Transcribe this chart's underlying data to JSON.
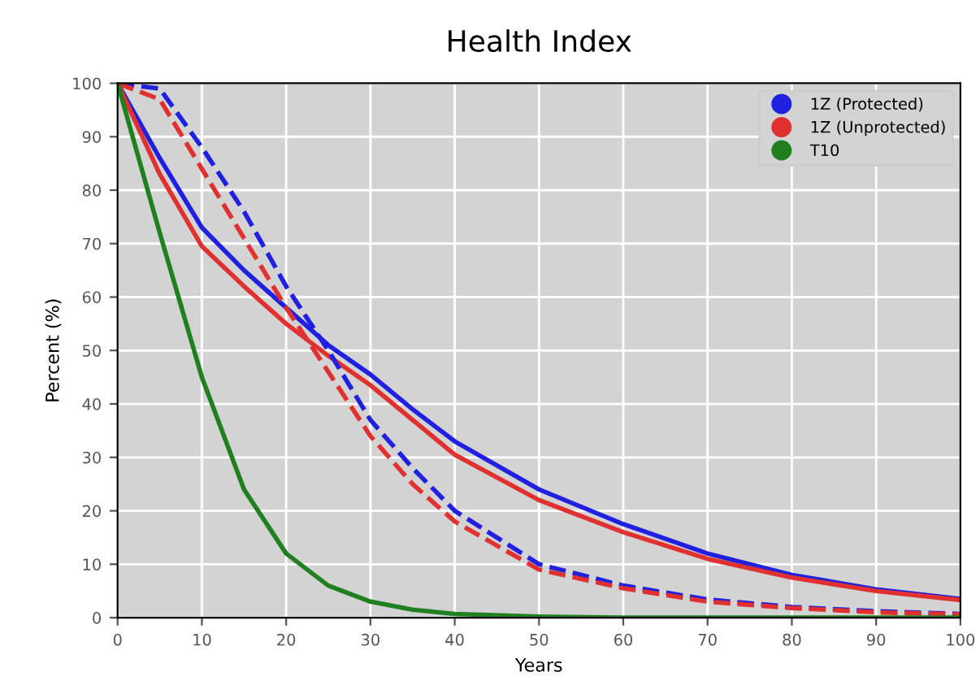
{
  "chart_data": {
    "type": "line",
    "title": "Health Index",
    "xlabel": "Years",
    "ylabel": "Percent (%)",
    "x": [
      0,
      5,
      10,
      15,
      20,
      25,
      30,
      35,
      40,
      50,
      60,
      70,
      80,
      90,
      100
    ],
    "series": [
      {
        "name": "1Z (Protected)",
        "color": "#2020e0",
        "line_style": "solid",
        "values": [
          100,
          86,
          73,
          65,
          58,
          51,
          45.5,
          39,
          33,
          24,
          17.5,
          12,
          8,
          5.3,
          3.5
        ]
      },
      {
        "name": "1Z (Unprotected)",
        "color": "#e03030",
        "line_style": "solid",
        "values": [
          100,
          83,
          69.5,
          62,
          55,
          49,
          43.5,
          37,
          30.5,
          22,
          16,
          11,
          7.5,
          5,
          3.3
        ]
      },
      {
        "color": "#2020e0",
        "line_style": "dashed",
        "values": [
          100,
          99,
          88,
          76,
          62,
          50,
          37,
          28,
          20,
          10,
          6,
          3.4,
          2,
          1.2,
          0.7
        ]
      },
      {
        "color": "#e03030",
        "line_style": "dashed",
        "values": [
          100,
          97,
          84,
          71,
          58,
          46,
          34,
          25,
          18,
          9,
          5.5,
          3,
          1.8,
          1,
          0.6
        ]
      },
      {
        "name": "T10",
        "color": "#208020",
        "line_style": "solid",
        "values": [
          100,
          72,
          45,
          24,
          12,
          6,
          3,
          1.5,
          0.7,
          0.2,
          0,
          0,
          0,
          0,
          0
        ]
      }
    ],
    "xlim": [
      0,
      100
    ],
    "xticks": [
      0,
      10,
      20,
      30,
      40,
      50,
      60,
      70,
      80,
      90,
      100
    ],
    "ylim": [
      0,
      100
    ],
    "yticks": [
      0,
      10,
      20,
      30,
      40,
      50,
      60,
      70,
      80,
      90,
      100
    ],
    "grid": true,
    "legend": "top right"
  }
}
